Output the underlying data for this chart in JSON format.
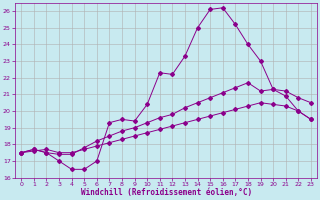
{
  "xlabel": "Windchill (Refroidissement éolien,°C)",
  "ylabel": "",
  "bg_color": "#c8eaf0",
  "line_color": "#8b008b",
  "grid_color": "#b0b0b0",
  "xlim": [
    -0.5,
    23.5
  ],
  "ylim": [
    16,
    26.5
  ],
  "xticks": [
    0,
    1,
    2,
    3,
    4,
    5,
    6,
    7,
    8,
    9,
    10,
    11,
    12,
    13,
    14,
    15,
    16,
    17,
    18,
    19,
    20,
    21,
    22,
    23
  ],
  "yticks": [
    16,
    17,
    18,
    19,
    20,
    21,
    22,
    23,
    24,
    25,
    26
  ],
  "line1_x": [
    0,
    1,
    2,
    3,
    4,
    5,
    6,
    7,
    8,
    9,
    10,
    11,
    12,
    13,
    14,
    15,
    16,
    17,
    18,
    19,
    20,
    21,
    22,
    23
  ],
  "line1_y": [
    17.5,
    17.7,
    17.5,
    17.0,
    16.5,
    16.5,
    17.0,
    19.3,
    19.5,
    19.4,
    20.4,
    22.3,
    22.2,
    23.3,
    25.0,
    26.1,
    26.2,
    25.2,
    24.0,
    23.0,
    21.3,
    20.9,
    20.0,
    19.5
  ],
  "line2_x": [
    0,
    1,
    2,
    3,
    4,
    5,
    6,
    7,
    8,
    9,
    10,
    11,
    12,
    13,
    14,
    15,
    16,
    17,
    18,
    19,
    20,
    21,
    22,
    23
  ],
  "line2_y": [
    17.5,
    17.7,
    17.5,
    17.4,
    17.4,
    17.8,
    18.2,
    18.5,
    18.8,
    19.0,
    19.3,
    19.6,
    19.8,
    20.2,
    20.5,
    20.8,
    21.1,
    21.4,
    21.7,
    21.2,
    21.3,
    21.2,
    20.8,
    20.5
  ],
  "line3_x": [
    0,
    1,
    2,
    3,
    4,
    5,
    6,
    7,
    8,
    9,
    10,
    11,
    12,
    13,
    14,
    15,
    16,
    17,
    18,
    19,
    20,
    21,
    22,
    23
  ],
  "line3_y": [
    17.5,
    17.6,
    17.7,
    17.5,
    17.5,
    17.7,
    17.9,
    18.1,
    18.3,
    18.5,
    18.7,
    18.9,
    19.1,
    19.3,
    19.5,
    19.7,
    19.9,
    20.1,
    20.3,
    20.5,
    20.4,
    20.3,
    20.0,
    19.5
  ],
  "tick_fontsize": 4.5,
  "xlabel_fontsize": 5.5,
  "marker_size": 2.0,
  "linewidth": 0.7
}
